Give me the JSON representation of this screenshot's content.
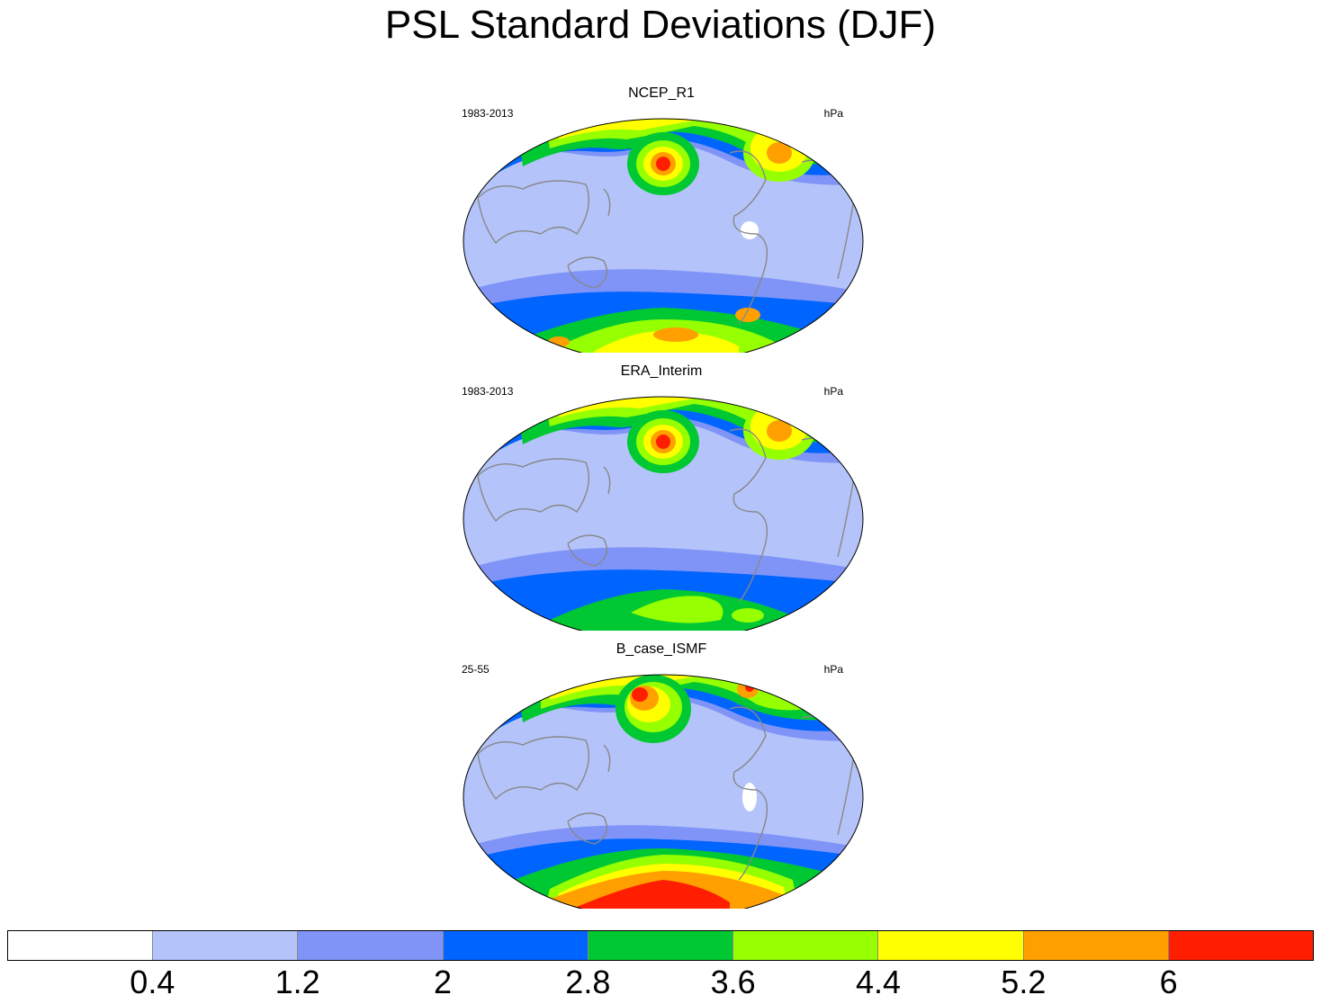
{
  "title": "PSL Standard Deviations (DJF)",
  "units": "hPa",
  "colors": [
    "#ffffff",
    "#b4c4fa",
    "#8094f8",
    "#0064ff",
    "#00c832",
    "#96ff00",
    "#ffff00",
    "#ffa000",
    "#ff1e00"
  ],
  "colorbar_labels": [
    "0.4",
    "1.2",
    "2",
    "2.8",
    "3.6",
    "4.4",
    "5.2",
    "6"
  ],
  "panels": [
    {
      "title": "NCEP_R1",
      "period": "1983-2013",
      "units": "hPa"
    },
    {
      "title": "ERA_Interim",
      "period": "1983-2013",
      "units": "hPa"
    },
    {
      "title": "B_case_ISMF",
      "period": "25-55",
      "units": "hPa"
    }
  ]
}
